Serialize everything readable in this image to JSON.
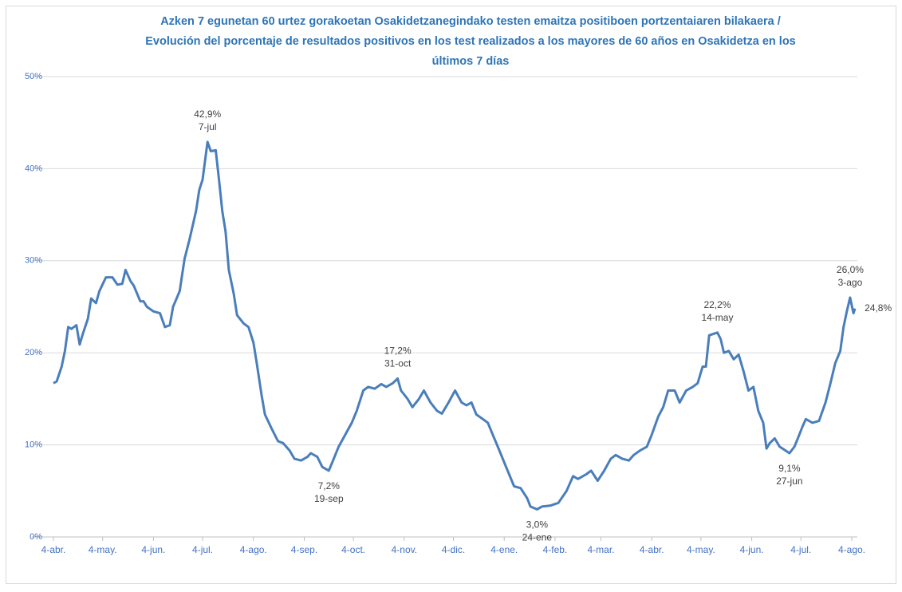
{
  "chart_data": {
    "type": "line",
    "title": [
      "Azken 7 egunetan 60 urtez gorakoetan Osakidetzanegindako  testen emaitza positiboen portzentaiaren bilakaera /",
      "Evolución  del porcentaje de resultados positivos en los test realizados a los mayores de 60 años en Osakidetza en los",
      "últimos 7 días"
    ],
    "series": [
      {
        "color": "#4a7ebb",
        "x": [
          0,
          2,
          5,
          7,
          9,
          11,
          14,
          16,
          18,
          21,
          23,
          26,
          28,
          32,
          36,
          39,
          42,
          44,
          47,
          49,
          53,
          55,
          57,
          61,
          65,
          68,
          71,
          73,
          77,
          80,
          83,
          87,
          89,
          91,
          94,
          96,
          99,
          101,
          103,
          105,
          107,
          110,
          112,
          116,
          119,
          122,
          124,
          127,
          129,
          133,
          137,
          140,
          144,
          147,
          151,
          155,
          157,
          161,
          164,
          168,
          171,
          174,
          178,
          182,
          185,
          189,
          192,
          196,
          200,
          203,
          207,
          210,
          212,
          216,
          219,
          223,
          226,
          230,
          234,
          237,
          241,
          245,
          249,
          252,
          255,
          258,
          262,
          265,
          268,
          272,
          275,
          278,
          281,
          285,
          289,
          291,
          295,
          298,
          303,
          308,
          313,
          317,
          320,
          325,
          328,
          332,
          336,
          340,
          343,
          347,
          351,
          354,
          358,
          362,
          365,
          369,
          372,
          375,
          379,
          382,
          386,
          390,
          393,
          396,
          398,
          400,
          405,
          407,
          409,
          412,
          415,
          418,
          421,
          424,
          427,
          430,
          433,
          435,
          437,
          440,
          443,
          449,
          452,
          455,
          457,
          459,
          463,
          467,
          471,
          474,
          477,
          480,
          482,
          484,
          486,
          488,
          489
        ],
        "values": [
          16.7,
          16.9,
          18.5,
          20.2,
          22.8,
          22.6,
          23.0,
          20.9,
          22.1,
          23.7,
          25.9,
          25.4,
          26.7,
          28.2,
          28.2,
          27.4,
          27.5,
          29.0,
          27.8,
          27.3,
          25.6,
          25.6,
          25.0,
          24.5,
          24.3,
          22.8,
          23.0,
          25.0,
          26.7,
          30.2,
          32.3,
          35.4,
          37.7,
          38.8,
          42.9,
          41.9,
          42.0,
          38.8,
          35.4,
          33.2,
          29.0,
          26.4,
          24.1,
          23.2,
          22.8,
          21.1,
          18.9,
          15.4,
          13.3,
          11.8,
          10.4,
          10.2,
          9.4,
          8.5,
          8.3,
          8.7,
          9.1,
          8.7,
          7.6,
          7.2,
          8.5,
          9.8,
          11.1,
          12.4,
          13.7,
          15.9,
          16.3,
          16.1,
          16.6,
          16.3,
          16.7,
          17.2,
          15.9,
          15.0,
          14.1,
          15.0,
          15.9,
          14.6,
          13.7,
          13.4,
          14.6,
          15.9,
          14.6,
          14.3,
          14.6,
          13.3,
          12.8,
          12.4,
          11.1,
          9.4,
          8.1,
          6.8,
          5.5,
          5.3,
          4.2,
          3.3,
          3.0,
          3.3,
          3.4,
          3.7,
          5.0,
          6.6,
          6.3,
          6.8,
          7.2,
          6.1,
          7.2,
          8.5,
          8.9,
          8.5,
          8.3,
          8.9,
          9.4,
          9.8,
          11.1,
          13.1,
          14.1,
          15.9,
          15.9,
          14.6,
          15.9,
          16.3,
          16.7,
          18.5,
          18.5,
          21.9,
          22.2,
          21.5,
          20.0,
          20.2,
          19.3,
          19.8,
          18.0,
          15.9,
          16.3,
          13.7,
          12.4,
          9.6,
          10.2,
          10.7,
          9.8,
          9.1,
          9.8,
          11.1,
          12.0,
          12.8,
          12.4,
          12.6,
          14.6,
          16.7,
          18.9,
          20.2,
          22.8,
          24.5,
          26.0,
          24.3,
          24.8
        ]
      }
    ],
    "annotations": [
      {
        "x": 94,
        "value": 42.9,
        "label": "42,9%",
        "date": "7-jul",
        "position": "above"
      },
      {
        "x": 168,
        "value": 7.2,
        "label": "7,2%",
        "date": "19-sep",
        "position": "below"
      },
      {
        "x": 210,
        "value": 17.2,
        "label": "17,2%",
        "date": "31-oct",
        "position": "above"
      },
      {
        "x": 295,
        "value": 3.0,
        "label": "3,0%",
        "date": "24-ene",
        "position": "below"
      },
      {
        "x": 405,
        "value": 22.2,
        "label": "22,2%",
        "date": "14-may",
        "position": "above"
      },
      {
        "x": 449,
        "value": 9.1,
        "label": "9,1%",
        "date": "27-jun",
        "position": "below"
      },
      {
        "x": 486,
        "value": 26.0,
        "label": "26,0%",
        "date": "3-ago",
        "position": "above"
      },
      {
        "x": 489,
        "value": 24.8,
        "label": "24,8%",
        "position": "right"
      }
    ],
    "xlim": [
      0,
      487
    ],
    "xticks": [
      {
        "value": 0,
        "label": "4-abr."
      },
      {
        "value": 30,
        "label": "4-may."
      },
      {
        "value": 61,
        "label": "4-jun."
      },
      {
        "value": 91,
        "label": "4-jul."
      },
      {
        "value": 122,
        "label": "4-ago."
      },
      {
        "value": 153,
        "label": "4-sep."
      },
      {
        "value": 183,
        "label": "4-oct."
      },
      {
        "value": 214,
        "label": "4-nov."
      },
      {
        "value": 244,
        "label": "4-dic."
      },
      {
        "value": 275,
        "label": "4-ene."
      },
      {
        "value": 306,
        "label": "4-feb."
      },
      {
        "value": 334,
        "label": "4-mar."
      },
      {
        "value": 365,
        "label": "4-abr."
      },
      {
        "value": 395,
        "label": "4-may."
      },
      {
        "value": 426,
        "label": "4-jun."
      },
      {
        "value": 456,
        "label": "4-jul."
      },
      {
        "value": 487,
        "label": "4-ago."
      }
    ],
    "ylim": [
      0,
      50
    ],
    "yticks": [
      {
        "value": 0,
        "label": "0%"
      },
      {
        "value": 10,
        "label": "10%"
      },
      {
        "value": 20,
        "label": "20%"
      },
      {
        "value": 30,
        "label": "30%"
      },
      {
        "value": 40,
        "label": "40%"
      },
      {
        "value": 50,
        "label": "50%"
      }
    ],
    "grid": true
  }
}
